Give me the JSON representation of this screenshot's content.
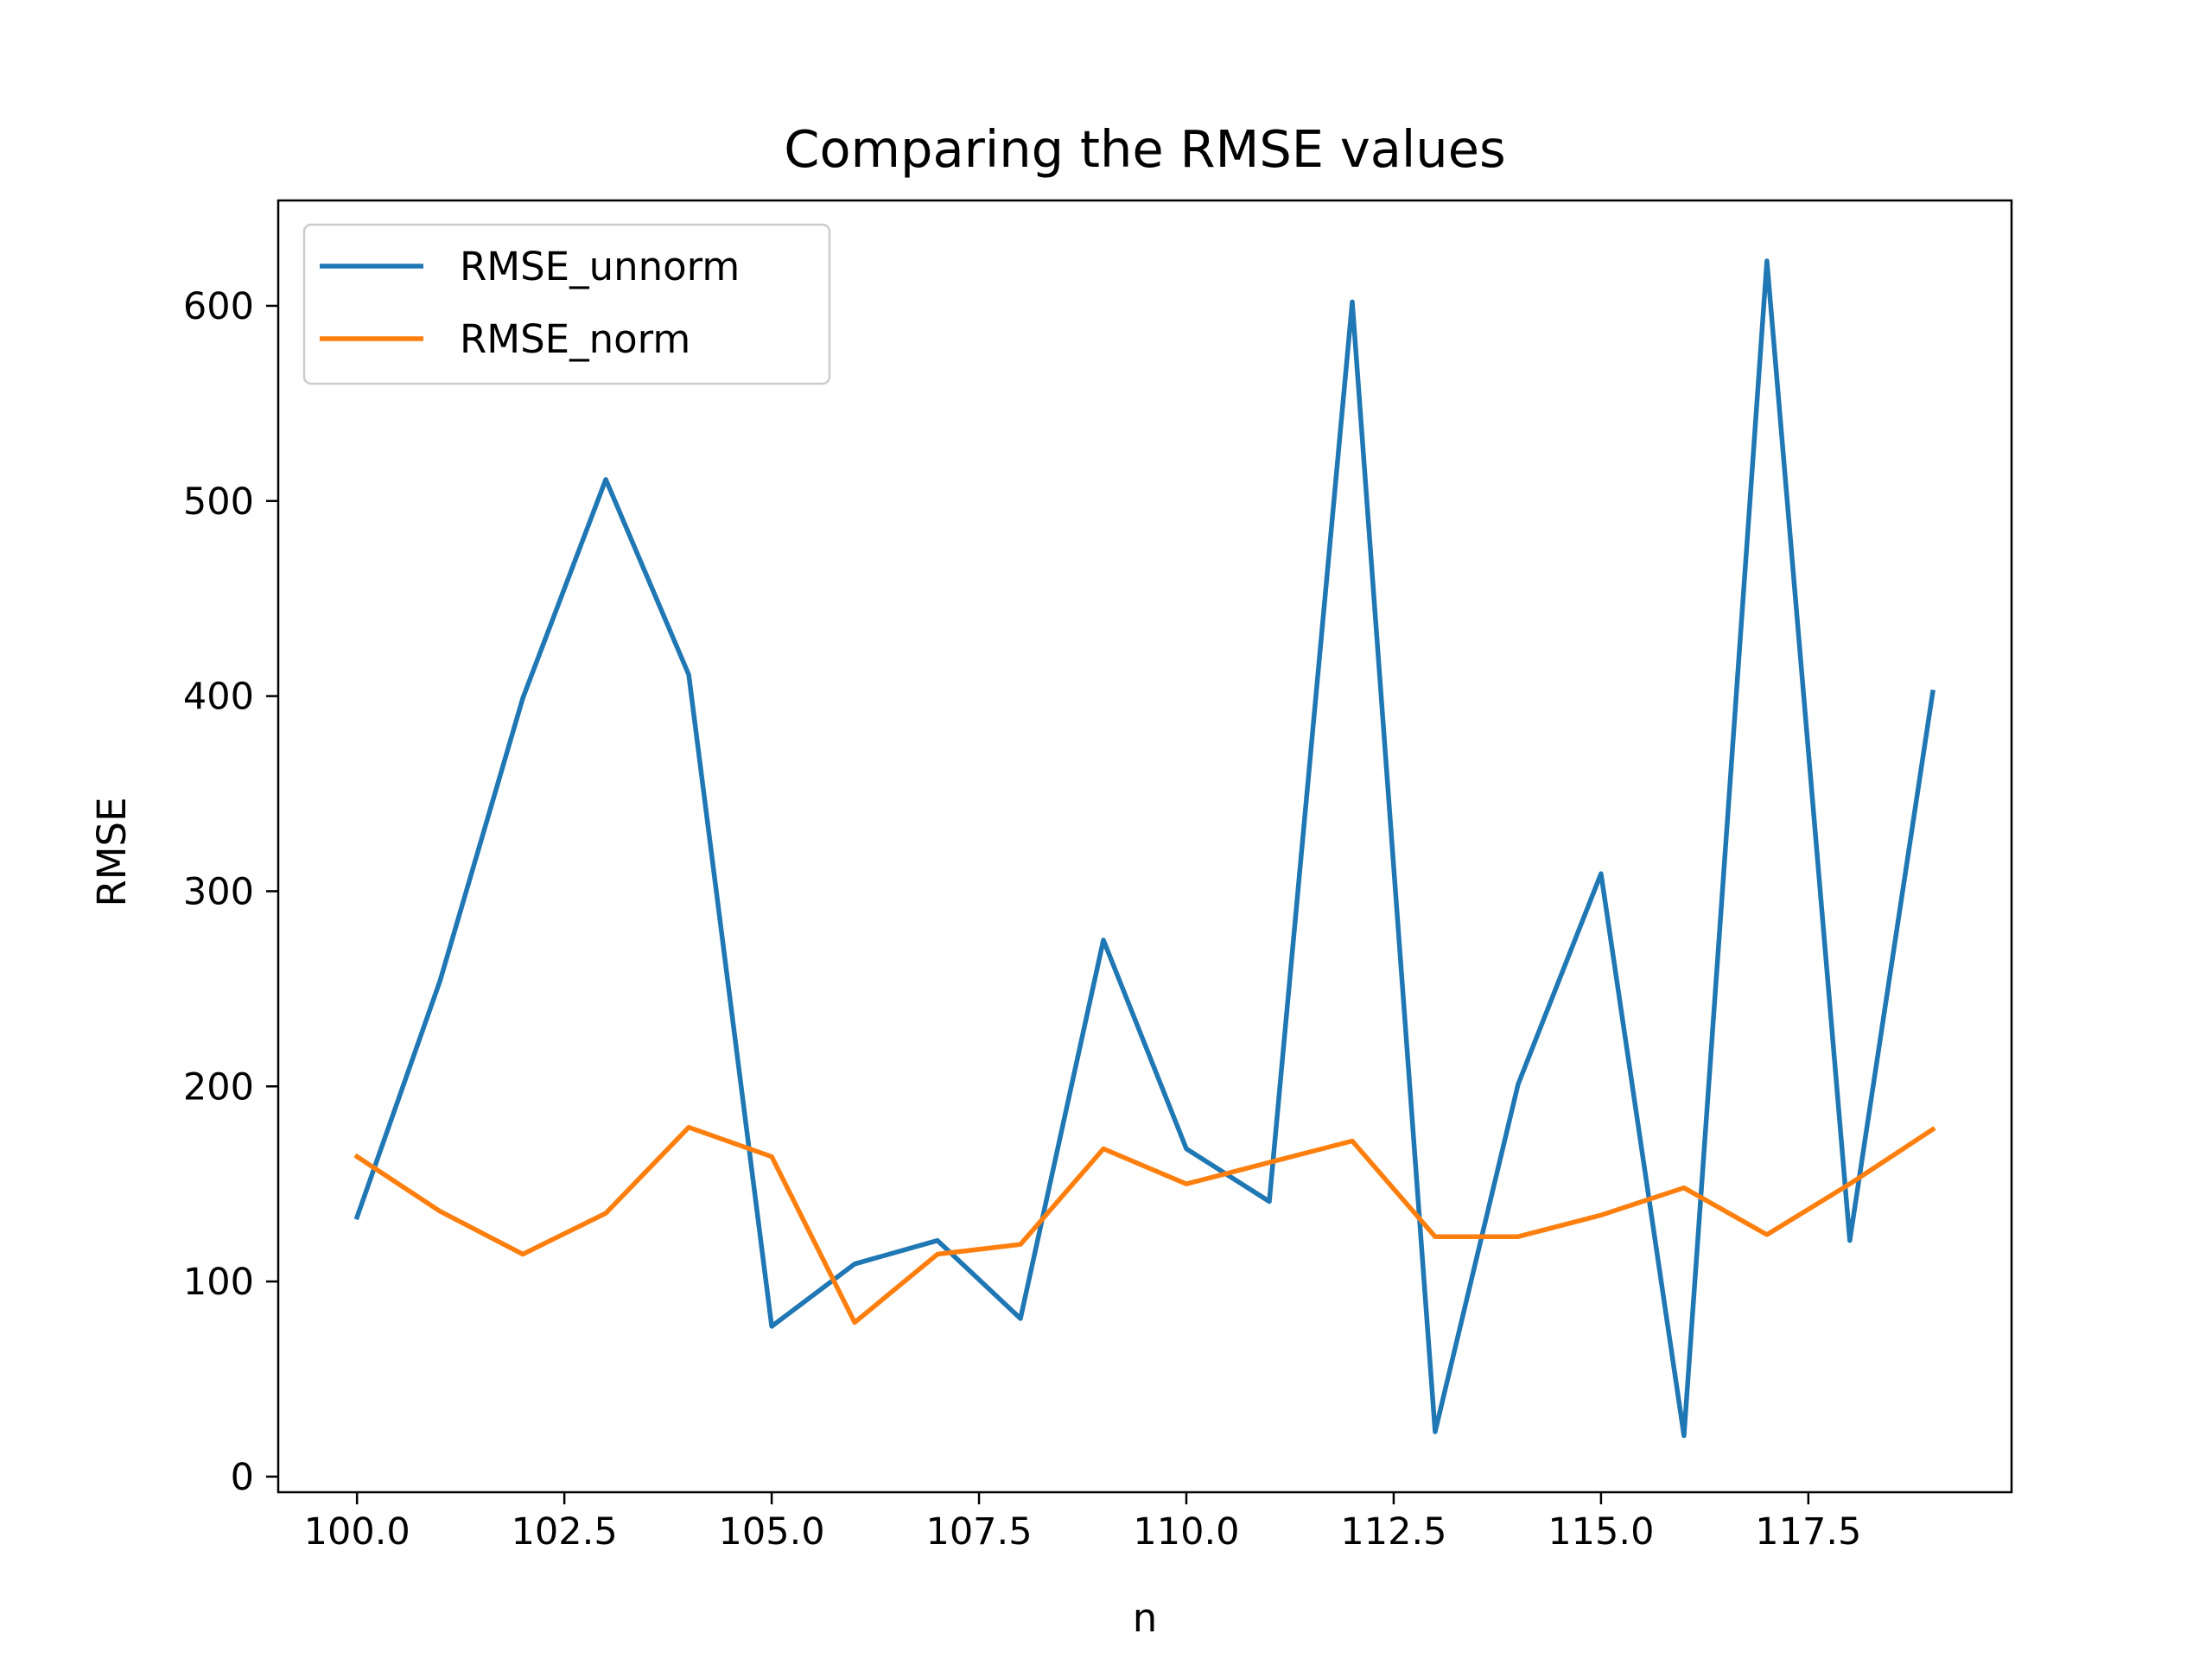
{
  "chart_data": {
    "type": "line",
    "title": "Comparing the RMSE values",
    "xlabel": "n",
    "ylabel": "RMSE",
    "x": [
      100,
      101,
      102,
      103,
      104,
      105,
      106,
      107,
      108,
      109,
      110,
      111,
      112,
      113,
      114,
      115,
      116,
      117,
      118,
      119
    ],
    "xlim": [
      99.05,
      119.95
    ],
    "ylim": [
      -8,
      654
    ],
    "xticks": [
      100.0,
      102.5,
      105.0,
      107.5,
      110.0,
      112.5,
      115.0,
      117.5
    ],
    "xtick_labels": [
      "100.0",
      "102.5",
      "105.0",
      "107.5",
      "110.0",
      "112.5",
      "115.0",
      "117.5"
    ],
    "yticks": [
      0,
      100,
      200,
      300,
      400,
      500,
      600
    ],
    "ytick_labels": [
      "0",
      "100",
      "200",
      "300",
      "400",
      "500",
      "600"
    ],
    "grid": false,
    "legend": "upper-left",
    "series": [
      {
        "name": "RMSE_unnorm",
        "color": "#1f77b4",
        "values": [
          133,
          254,
          399,
          511,
          411,
          77,
          109,
          121,
          81,
          275,
          168,
          141,
          602,
          23,
          201,
          309,
          21,
          623,
          121,
          402
        ]
      },
      {
        "name": "RMSE_norm",
        "color": "#ff7f0e",
        "values": [
          164,
          136,
          114,
          135,
          179,
          164,
          79,
          114,
          119,
          168,
          150,
          161,
          172,
          123,
          123,
          134,
          148,
          124,
          150,
          178
        ]
      }
    ]
  }
}
